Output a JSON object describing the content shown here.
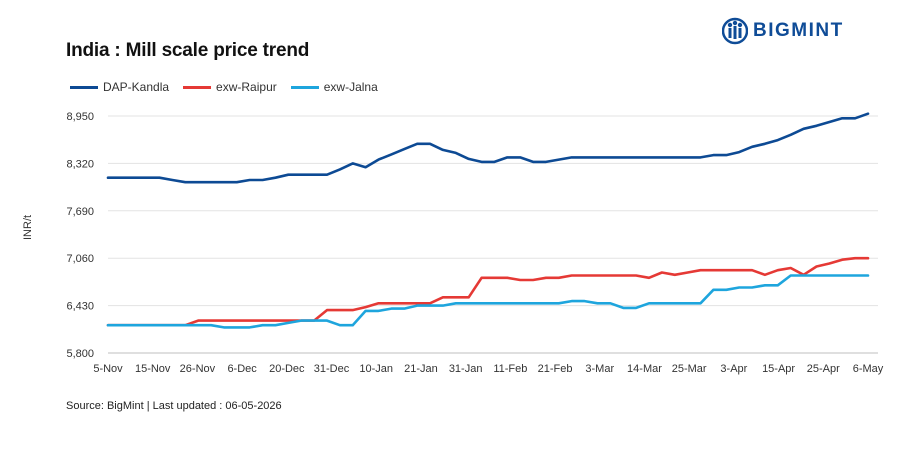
{
  "title": "India : Mill scale price trend",
  "brand": {
    "name": "BIGMINT",
    "icon": "bigmint-logo-icon",
    "color": "#0f4c97"
  },
  "source": "Source: BigMint | Last updated : 06-05-2026",
  "chart_data": {
    "type": "line",
    "ylabel": "INR/t",
    "xlabel": "",
    "ylim": [
      5800,
      8950
    ],
    "yticks": [
      "5,800",
      "6,430",
      "7,060",
      "7,690",
      "8,320",
      "8,950"
    ],
    "ytick_values": [
      5800,
      6430,
      7060,
      7690,
      8320,
      8950
    ],
    "xtick_labels": [
      "5-Nov",
      "15-Nov",
      "26-Nov",
      "6-Dec",
      "20-Dec",
      "31-Dec",
      "10-Jan",
      "21-Jan",
      "31-Jan",
      "11-Feb",
      "21-Feb",
      "3-Mar",
      "14-Mar",
      "25-Mar",
      "3-Apr",
      "15-Apr",
      "25-Apr",
      "6-May"
    ],
    "grid": "horizontal",
    "legend_position": "top-left",
    "series": [
      {
        "name": "DAP-Kandla",
        "color": "#0d4a94",
        "values": [
          8130,
          8130,
          8130,
          8130,
          8130,
          8100,
          8070,
          8070,
          8070,
          8070,
          8070,
          8100,
          8100,
          8130,
          8170,
          8170,
          8170,
          8170,
          8240,
          8320,
          8270,
          8370,
          8440,
          8510,
          8580,
          8580,
          8500,
          8460,
          8380,
          8340,
          8340,
          8400,
          8400,
          8340,
          8340,
          8370,
          8400,
          8400,
          8400,
          8400,
          8400,
          8400,
          8400,
          8400,
          8400,
          8400,
          8400,
          8430,
          8430,
          8470,
          8540,
          8580,
          8630,
          8700,
          8780,
          8820,
          8870,
          8920,
          8920,
          8980
        ]
      },
      {
        "name": "exw-Raipur",
        "color": "#e53935",
        "values": [
          6170,
          6170,
          6170,
          6170,
          6170,
          6170,
          6170,
          6230,
          6230,
          6230,
          6230,
          6230,
          6230,
          6230,
          6230,
          6230,
          6230,
          6370,
          6370,
          6370,
          6410,
          6460,
          6460,
          6460,
          6460,
          6460,
          6540,
          6540,
          6540,
          6800,
          6800,
          6800,
          6770,
          6770,
          6800,
          6800,
          6830,
          6830,
          6830,
          6830,
          6830,
          6830,
          6800,
          6870,
          6840,
          6870,
          6900,
          6900,
          6900,
          6900,
          6900,
          6840,
          6900,
          6930,
          6840,
          6950,
          6990,
          7040,
          7060,
          7060
        ]
      },
      {
        "name": "exw-Jalna",
        "color": "#1ea5dd",
        "values": [
          6170,
          6170,
          6170,
          6170,
          6170,
          6170,
          6170,
          6170,
          6170,
          6140,
          6140,
          6140,
          6170,
          6170,
          6200,
          6230,
          6230,
          6230,
          6170,
          6170,
          6360,
          6360,
          6390,
          6390,
          6430,
          6430,
          6430,
          6460,
          6460,
          6460,
          6460,
          6460,
          6460,
          6460,
          6460,
          6460,
          6490,
          6490,
          6460,
          6460,
          6400,
          6400,
          6460,
          6460,
          6460,
          6460,
          6460,
          6640,
          6640,
          6670,
          6670,
          6700,
          6700,
          6830,
          6830,
          6830,
          6830,
          6830,
          6830,
          6830
        ]
      }
    ]
  }
}
